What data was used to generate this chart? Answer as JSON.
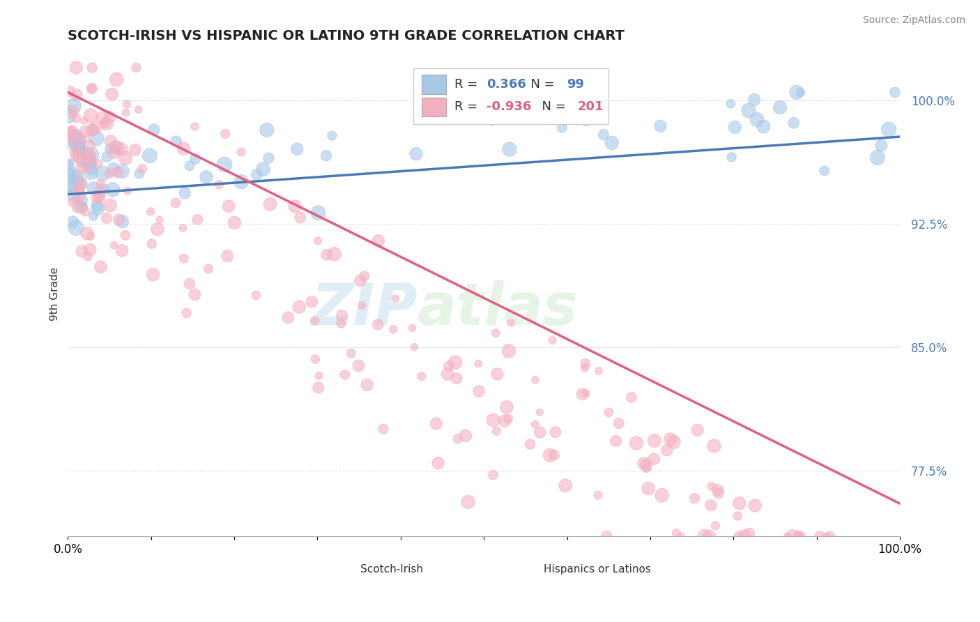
{
  "title": "SCOTCH-IRISH VS HISPANIC OR LATINO 9TH GRADE CORRELATION CHART",
  "source_text": "Source: ZipAtlas.com",
  "ylabel": "9th Grade",
  "xlim": [
    0.0,
    1.0
  ],
  "ylim": [
    0.735,
    1.03
  ],
  "yticks": [
    0.775,
    0.85,
    0.925,
    1.0
  ],
  "ytick_labels": [
    "77.5%",
    "85.0%",
    "92.5%",
    "100.0%"
  ],
  "legend_blue_label": "Scotch-Irish",
  "legend_pink_label": "Hispanics or Latinos",
  "R_blue": 0.366,
  "N_blue": 99,
  "R_pink": -0.936,
  "N_pink": 201,
  "blue_color": "#a8c8e8",
  "pink_color": "#f5b0c0",
  "blue_line_color": "#4a7ab5",
  "pink_line_color": "#e06080",
  "watermark_top": "ZIP",
  "watermark_bot": "atlas",
  "background_color": "#ffffff",
  "grid_color": "#e0e0e0",
  "blue_trend_y0": 0.943,
  "blue_trend_y1": 0.978,
  "pink_trend_y0": 1.005,
  "pink_trend_y1": 0.755
}
